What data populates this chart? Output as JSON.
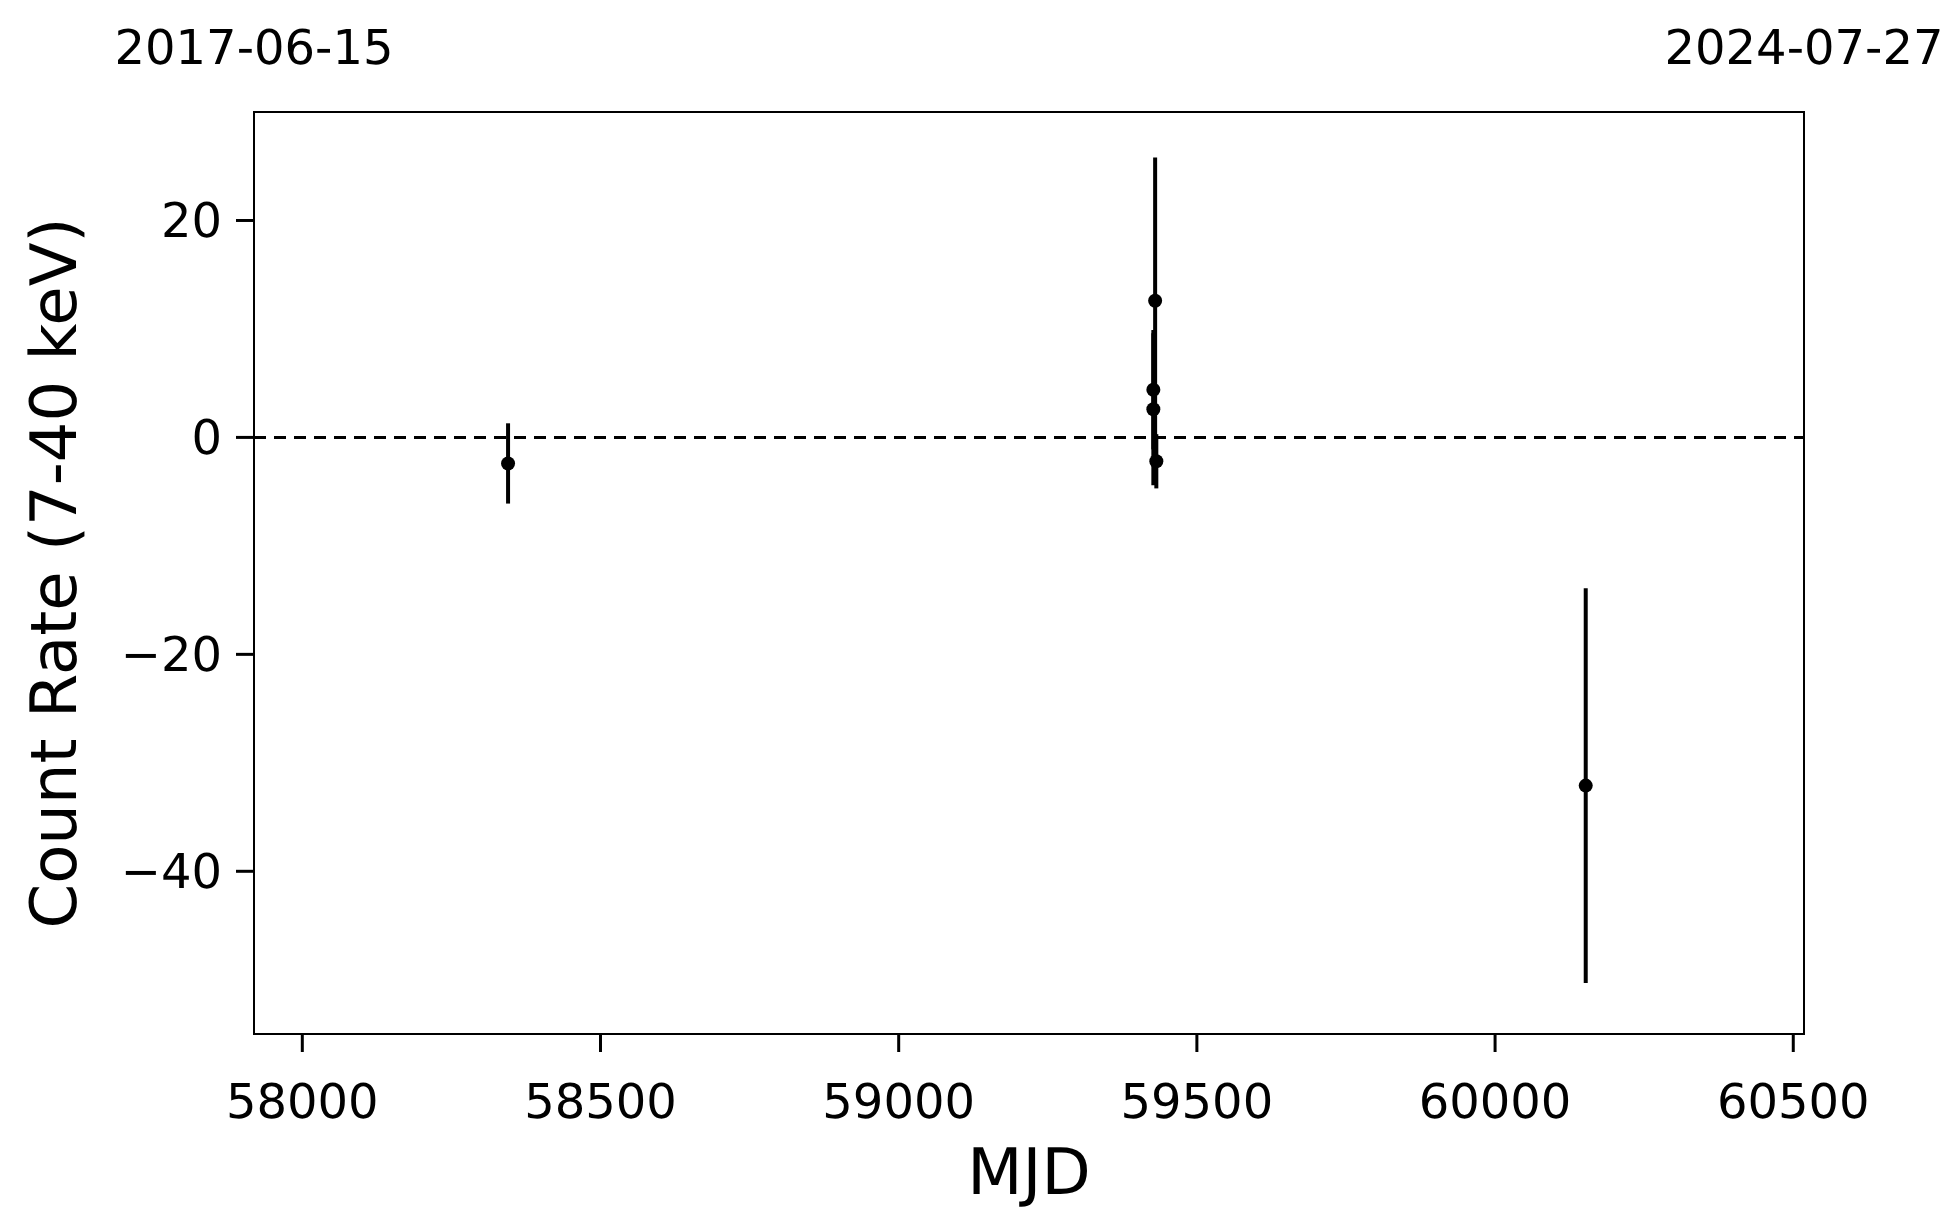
{
  "chart_data": {
    "type": "scatter",
    "xlabel": "MJD",
    "ylabel": "Count Rate (7-40 keV)",
    "x": [
      58345,
      59430,
      59427,
      59427,
      59432,
      60152
    ],
    "values": [
      -2.4,
      12.6,
      4.4,
      2.6,
      -2.2,
      -32.1
    ],
    "errors": [
      3.7,
      13.2,
      5.5,
      7,
      2.5,
      18.2
    ],
    "color": "#000000",
    "marker": "circle",
    "xlim": [
      57919,
      60518
    ],
    "xticks": [
      58000,
      58500,
      59000,
      59500,
      60000,
      60500
    ],
    "x2lim": [
      "2017-06-15",
      "2024-07-27"
    ],
    "x2ticks": [
      "2017-06-15",
      "2024-07-27"
    ],
    "ylim": [
      -55,
      30
    ],
    "yticks": [
      -40,
      -20,
      0,
      20
    ],
    "ref_lines": [
      {
        "axis": "y",
        "value": 0,
        "color": "#000000",
        "line_style": "dashed"
      }
    ],
    "grid": false
  }
}
